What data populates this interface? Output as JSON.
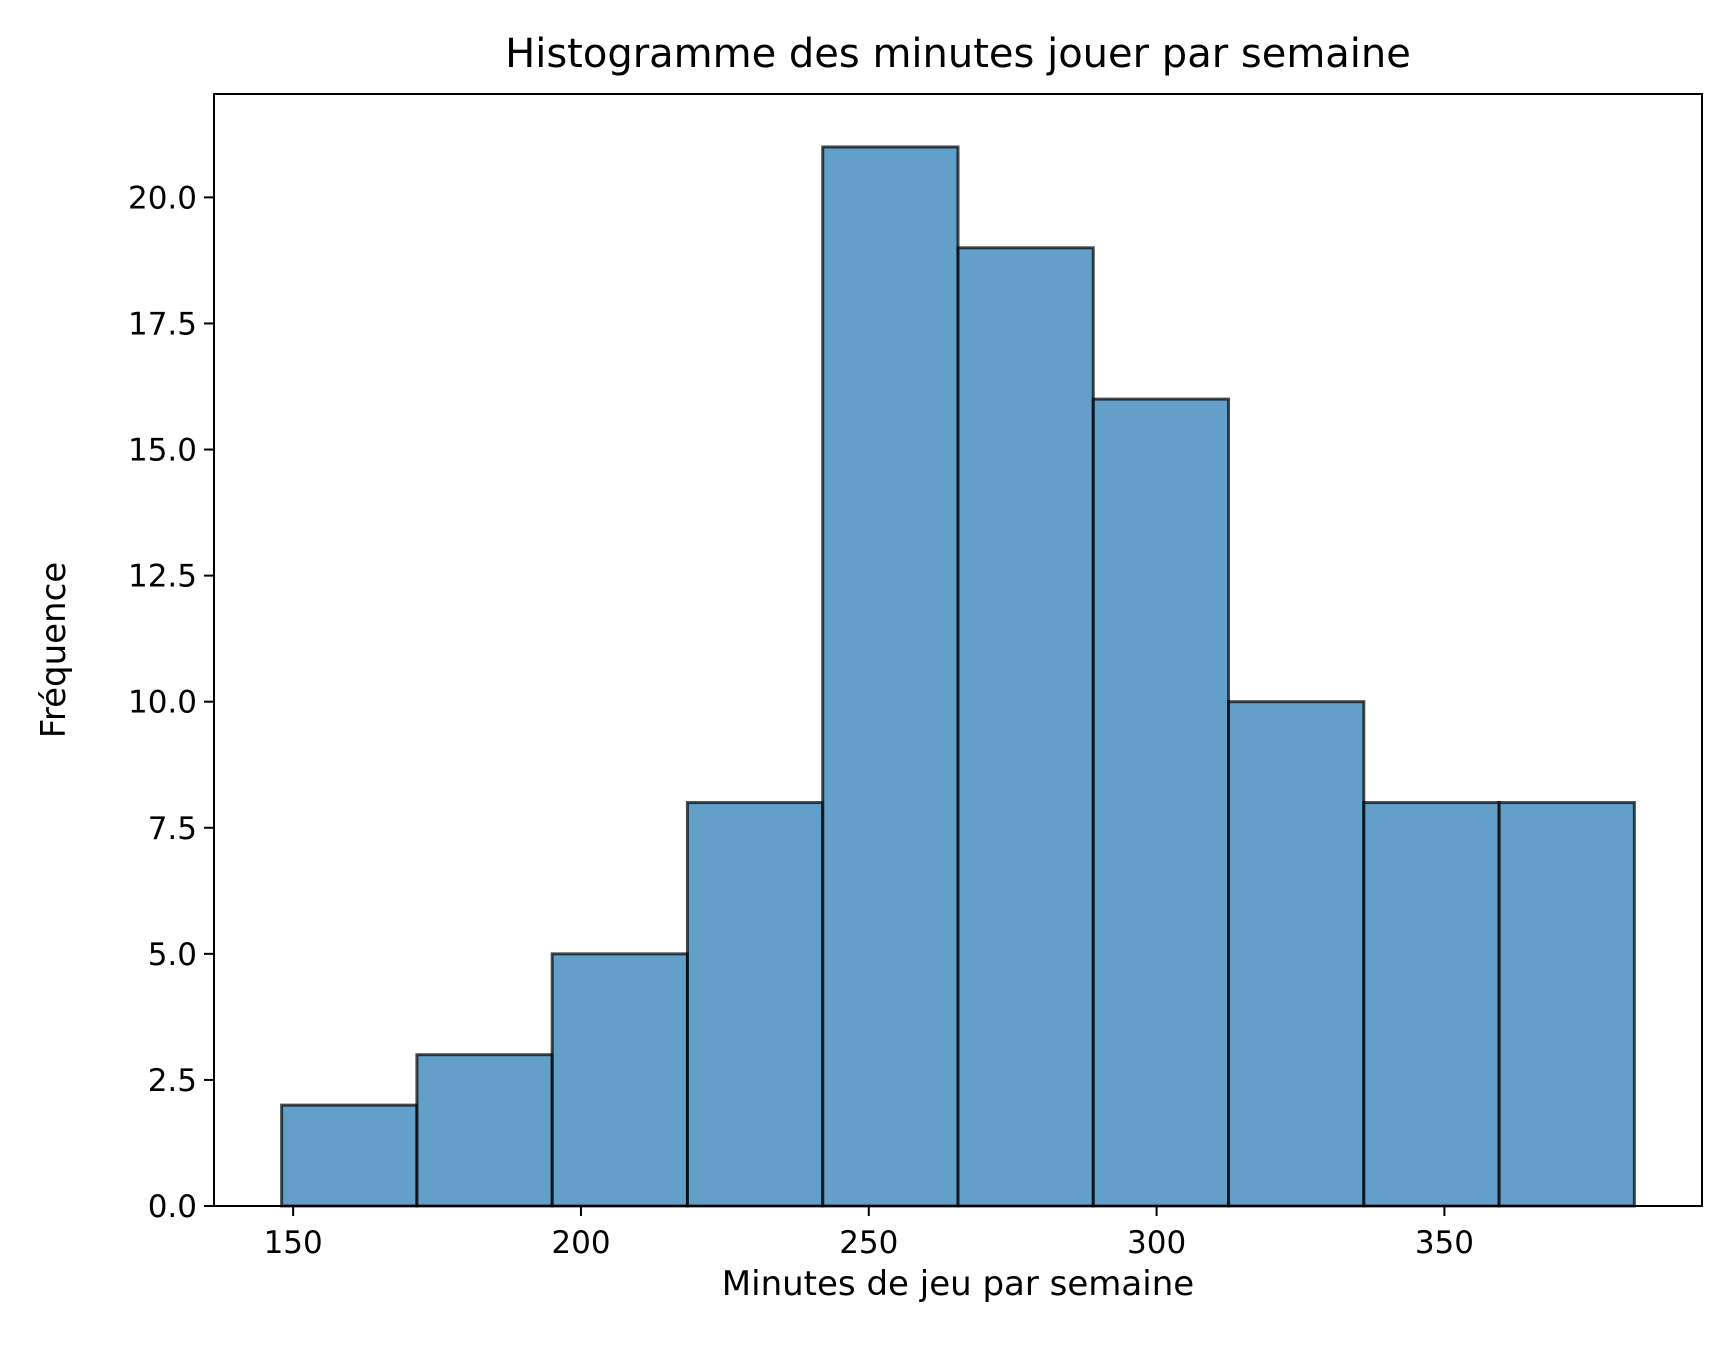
{
  "chart_data": {
    "type": "bar",
    "title": "Histogramme des minutes jouer par semaine",
    "xlabel": "Minutes de jeu par semaine",
    "ylabel": "Fréquence",
    "bins": [
      {
        "start": 148.0,
        "end": 171.5,
        "count": 2
      },
      {
        "start": 171.5,
        "end": 195.0,
        "count": 3
      },
      {
        "start": 195.0,
        "end": 218.5,
        "count": 5
      },
      {
        "start": 218.5,
        "end": 242.0,
        "count": 8
      },
      {
        "start": 242.0,
        "end": 265.5,
        "count": 21
      },
      {
        "start": 265.5,
        "end": 289.0,
        "count": 19
      },
      {
        "start": 289.0,
        "end": 312.5,
        "count": 16
      },
      {
        "start": 312.5,
        "end": 336.0,
        "count": 10
      },
      {
        "start": 336.0,
        "end": 359.5,
        "count": 8
      },
      {
        "start": 359.5,
        "end": 383.0,
        "count": 8
      }
    ],
    "xlim": [
      136.25,
      394.75
    ],
    "ylim": [
      0,
      22.05
    ],
    "x_ticks": [
      {
        "value": 150,
        "label": "150"
      },
      {
        "value": 200,
        "label": "200"
      },
      {
        "value": 250,
        "label": "250"
      },
      {
        "value": 300,
        "label": "300"
      },
      {
        "value": 350,
        "label": "350"
      }
    ],
    "y_ticks": [
      {
        "value": 0,
        "label": "0.0"
      },
      {
        "value": 2.5,
        "label": "2.5"
      },
      {
        "value": 5,
        "label": "5.0"
      },
      {
        "value": 7.5,
        "label": "7.5"
      },
      {
        "value": 10,
        "label": "10.0"
      },
      {
        "value": 12.5,
        "label": "12.5"
      },
      {
        "value": 15,
        "label": "15.0"
      },
      {
        "value": 17.5,
        "label": "17.5"
      },
      {
        "value": 20,
        "label": "20.0"
      }
    ],
    "grid": false,
    "colors": {
      "bar_fill": "#1f77b4",
      "bar_edge": "#000000"
    }
  }
}
